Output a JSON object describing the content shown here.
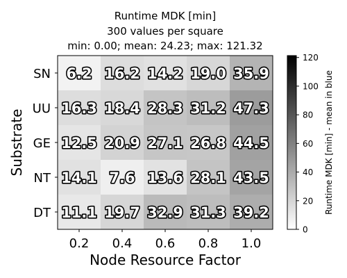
{
  "chart_data": {
    "type": "heatmap",
    "title_lines": [
      "Runtime MDK [min]",
      "300 values per square",
      "min: 0.00; mean: 24.23; max: 121.32"
    ],
    "xlabel": "Node Resource Factor",
    "ylabel": "Substrate",
    "x_categories": [
      "0.2",
      "0.4",
      "0.6",
      "0.8",
      "1.0"
    ],
    "y_categories": [
      "SN",
      "UU",
      "GE",
      "NT",
      "DT"
    ],
    "values": [
      [
        6.2,
        16.2,
        14.2,
        19.0,
        35.9
      ],
      [
        16.3,
        18.4,
        28.3,
        31.2,
        47.3
      ],
      [
        12.5,
        20.9,
        27.1,
        26.8,
        44.5
      ],
      [
        14.1,
        7.6,
        13.6,
        28.1,
        43.5
      ],
      [
        11.1,
        19.7,
        32.9,
        31.3,
        39.2
      ]
    ],
    "cell_labels": [
      [
        "6.2",
        "16.2",
        "14.2",
        "19.0",
        "35.9"
      ],
      [
        "16.3",
        "18.4",
        "28.3",
        "31.2",
        "47.3"
      ],
      [
        "12.5",
        "20.9",
        "27.1",
        "26.8",
        "44.5"
      ],
      [
        "14.1",
        "7.6",
        "13.6",
        "28.1",
        "43.5"
      ],
      [
        "11.1",
        "19.7",
        "32.9",
        "31.3",
        "39.2"
      ]
    ],
    "colorbar": {
      "label": "Runtime MDK [min] - mean in blue",
      "range": [
        0,
        121.32
      ],
      "ticks": [
        0,
        20,
        40,
        60,
        80,
        100,
        120
      ],
      "tick_labels": [
        "0",
        "20",
        "40",
        "60",
        "80",
        "100",
        "120"
      ],
      "colormap": "Greys"
    },
    "colors": {
      "low": "#ffffff",
      "high": "#000000"
    }
  }
}
